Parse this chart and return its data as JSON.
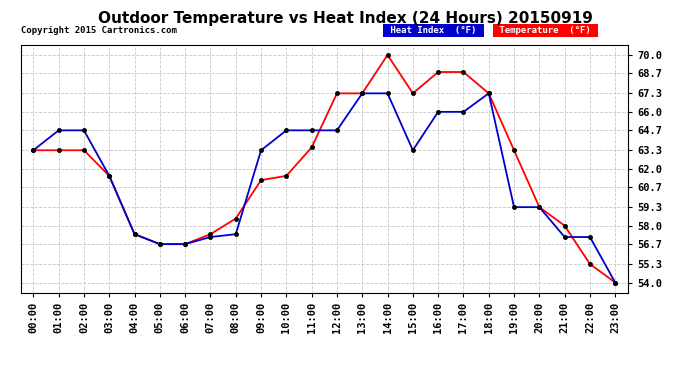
{
  "title": "Outdoor Temperature vs Heat Index (24 Hours) 20150919",
  "copyright": "Copyright 2015 Cartronics.com",
  "background_color": "#ffffff",
  "plot_background": "#ffffff",
  "grid_color": "#c8c8c8",
  "ylim": [
    53.3,
    70.7
  ],
  "yticks": [
    54.0,
    55.3,
    56.7,
    58.0,
    59.3,
    60.7,
    62.0,
    63.3,
    64.7,
    66.0,
    67.3,
    68.7,
    70.0
  ],
  "hours": [
    "00:00",
    "01:00",
    "02:00",
    "03:00",
    "04:00",
    "05:00",
    "06:00",
    "07:00",
    "08:00",
    "09:00",
    "10:00",
    "11:00",
    "12:00",
    "13:00",
    "14:00",
    "15:00",
    "16:00",
    "17:00",
    "18:00",
    "19:00",
    "20:00",
    "21:00",
    "22:00",
    "23:00"
  ],
  "temperature": [
    63.3,
    63.3,
    63.3,
    61.5,
    57.4,
    56.7,
    56.7,
    57.4,
    58.5,
    61.2,
    61.5,
    63.5,
    67.3,
    67.3,
    70.0,
    67.3,
    68.8,
    68.8,
    67.3,
    63.3,
    59.3,
    58.0,
    55.3,
    54.0
  ],
  "heat_index": [
    63.3,
    64.7,
    64.7,
    61.5,
    57.4,
    56.7,
    56.7,
    57.2,
    57.4,
    63.3,
    64.7,
    64.7,
    64.7,
    67.3,
    67.3,
    63.3,
    66.0,
    66.0,
    67.3,
    59.3,
    59.3,
    57.2,
    57.2,
    54.0
  ],
  "temp_color": "#ff0000",
  "hi_color": "#0000cc",
  "legend_hi_bg": "#0000cc",
  "legend_temp_bg": "#ff0000",
  "legend_text_color": "#ffffff",
  "title_fontsize": 11,
  "tick_fontsize": 7.5
}
